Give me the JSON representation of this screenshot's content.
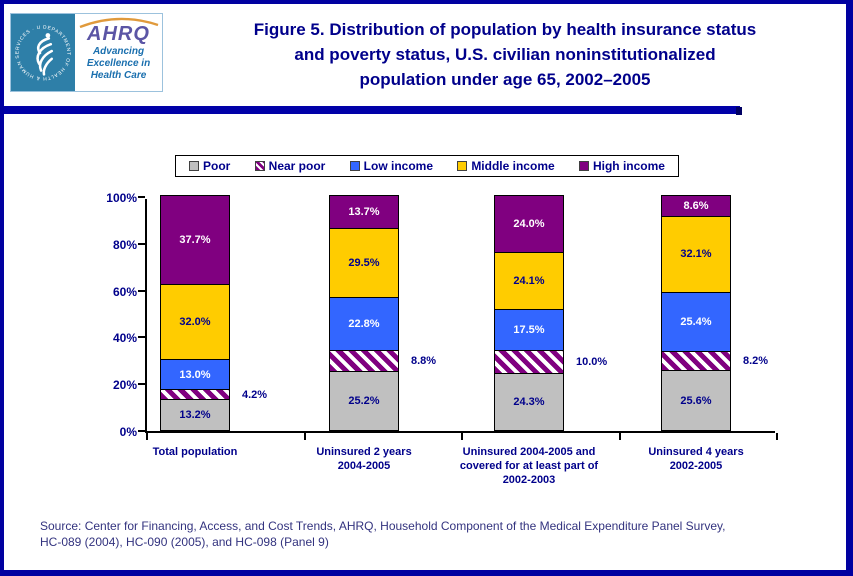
{
  "header": {
    "logo": {
      "agency": "AHRQ",
      "tagline": "Advancing\nExcellence in\nHealth Care",
      "seal_text": "DEPARTMENT OF HEALTH & HUMAN SERVICES · USA"
    },
    "title_lines": [
      "Figure 5. Distribution of population by health insurance status",
      "and poverty status, U.S. civilian noninstitutionalized",
      "population under age 65, 2002–2005"
    ]
  },
  "chart_data": {
    "type": "bar",
    "stacked": true,
    "title": "Figure 5. Distribution of population by health insurance status and poverty status, U.S. civilian noninstitutionalized population under age 65, 2002–2005",
    "categories": [
      "Total population",
      "Uninsured 2 years\n2004-2005",
      "Uninsured 2004-2005 and\ncovered for at least part of\n2002-2003",
      "Uninsured 4 years\n2002-2005"
    ],
    "series": [
      {
        "name": "Poor",
        "color": "#c0c0c0",
        "pattern": "speckle",
        "label_color": "#00008b",
        "label_outside": false,
        "values": [
          13.2,
          25.2,
          24.3,
          25.6
        ]
      },
      {
        "name": "Near poor",
        "color": "#800080",
        "pattern": "hatch",
        "label_color": "#00008b",
        "label_outside": true,
        "values": [
          4.2,
          8.8,
          10.0,
          8.2
        ]
      },
      {
        "name": "Low income",
        "color": "#3366ff",
        "pattern": "solid",
        "label_color": "#ffffff",
        "label_outside": false,
        "values": [
          13.0,
          22.8,
          17.5,
          25.4
        ]
      },
      {
        "name": "Middle income",
        "color": "#ffcc00",
        "pattern": "speckle",
        "label_color": "#00008b",
        "label_outside": false,
        "values": [
          32.0,
          29.5,
          24.1,
          32.1
        ]
      },
      {
        "name": "High income",
        "color": "#800080",
        "pattern": "solid",
        "label_color": "#ffffff",
        "label_outside": false,
        "values": [
          37.7,
          13.7,
          24.0,
          8.6
        ]
      }
    ],
    "xlabel": "",
    "ylabel": "",
    "yticks": [
      "0%",
      "20%",
      "40%",
      "60%",
      "80%",
      "100%"
    ],
    "ylim": [
      0,
      100
    ],
    "value_suffix": "%",
    "legend_position": "top",
    "grid": false
  },
  "source_lines": [
    "Source: Center for Financing, Access, and Cost Trends, AHRQ, Household Component of the Medical Expenditure Panel Survey,",
    "HC-089 (2004), HC-090 (2005), and HC-098 (Panel 9)"
  ],
  "colors": {
    "frame": "#0000a0",
    "divider": "#0000a8",
    "title_text": "#00008b",
    "chart_text": "#00008b",
    "source_text": "#33337f",
    "bar_gray": "#c0c0c0",
    "bar_blue": "#3366ff",
    "bar_yellow": "#ffcc00",
    "bar_purple": "#800080",
    "hatch_bg": "#ffffff"
  }
}
